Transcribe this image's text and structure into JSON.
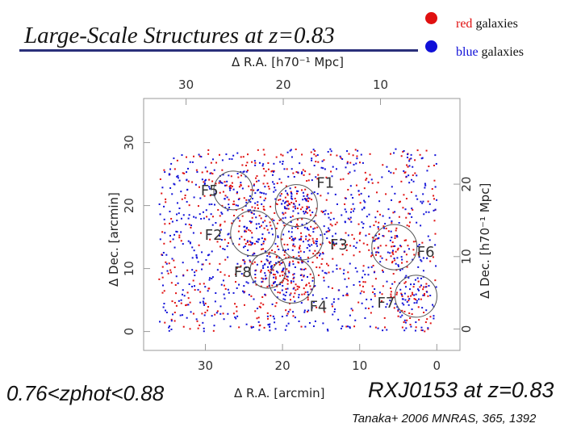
{
  "slide": {
    "title": "Large-Scale Structures at z=0.83",
    "redshift_range": "0.76<zphot<0.88",
    "cluster_label": "RXJ0153 at z=0.83",
    "citation": "Tanaka+ 2006 MNRAS, 365, 1392",
    "colors": {
      "title_rule": "#2a2f7a",
      "red": "#e01010",
      "blue": "#1010d8"
    }
  },
  "legend": [
    {
      "color_word": "red",
      "rest": " galaxies",
      "color": "#e01010"
    },
    {
      "color_word": "blue",
      "rest": " galaxies",
      "color": "#1010d8"
    }
  ],
  "chart_data": {
    "type": "scatter",
    "xlabel_bottom": "Δ R.A.  [arcmin]",
    "xlabel_top": "Δ R.A.  [h70⁻¹ Mpc]",
    "ylabel_left": "Δ Dec.  [arcmin]",
    "ylabel_right": "Δ Dec.  [h70⁻¹ Mpc]",
    "x_arcmin_range": [
      38,
      -3
    ],
    "y_arcmin_range": [
      -3,
      37
    ],
    "x_arcmin_ticks": [
      30,
      20,
      10,
      0
    ],
    "x_mpc_ticks": [
      30,
      20,
      10
    ],
    "y_arcmin_ticks": [
      0,
      10,
      20,
      30
    ],
    "y_mpc_ticks": [
      0,
      10,
      20
    ],
    "field_x_arcmin": [
      36,
      0
    ],
    "field_y_arcmin": [
      0,
      29
    ],
    "structures": [
      {
        "name": "F1",
        "x": 18.2,
        "y": 20.0
      },
      {
        "name": "F3",
        "x": 17.5,
        "y": 14.7
      },
      {
        "name": "F4",
        "x": 18.8,
        "y": 8.1
      },
      {
        "name": "F5",
        "x": 26.4,
        "y": 22.4
      },
      {
        "name": "F6",
        "x": 5.5,
        "y": 13.4
      },
      {
        "name": "F7",
        "x": 2.7,
        "y": 5.6
      },
      {
        "name": "F8",
        "x": 21.9,
        "y": 9.7
      },
      {
        "name": "F2",
        "x": 23.8,
        "y": 15.6
      }
    ],
    "series": [
      {
        "name": "red galaxies",
        "color": "#e01010",
        "count": 780
      },
      {
        "name": "blue galaxies",
        "color": "#1010d8",
        "count": 900
      }
    ]
  }
}
